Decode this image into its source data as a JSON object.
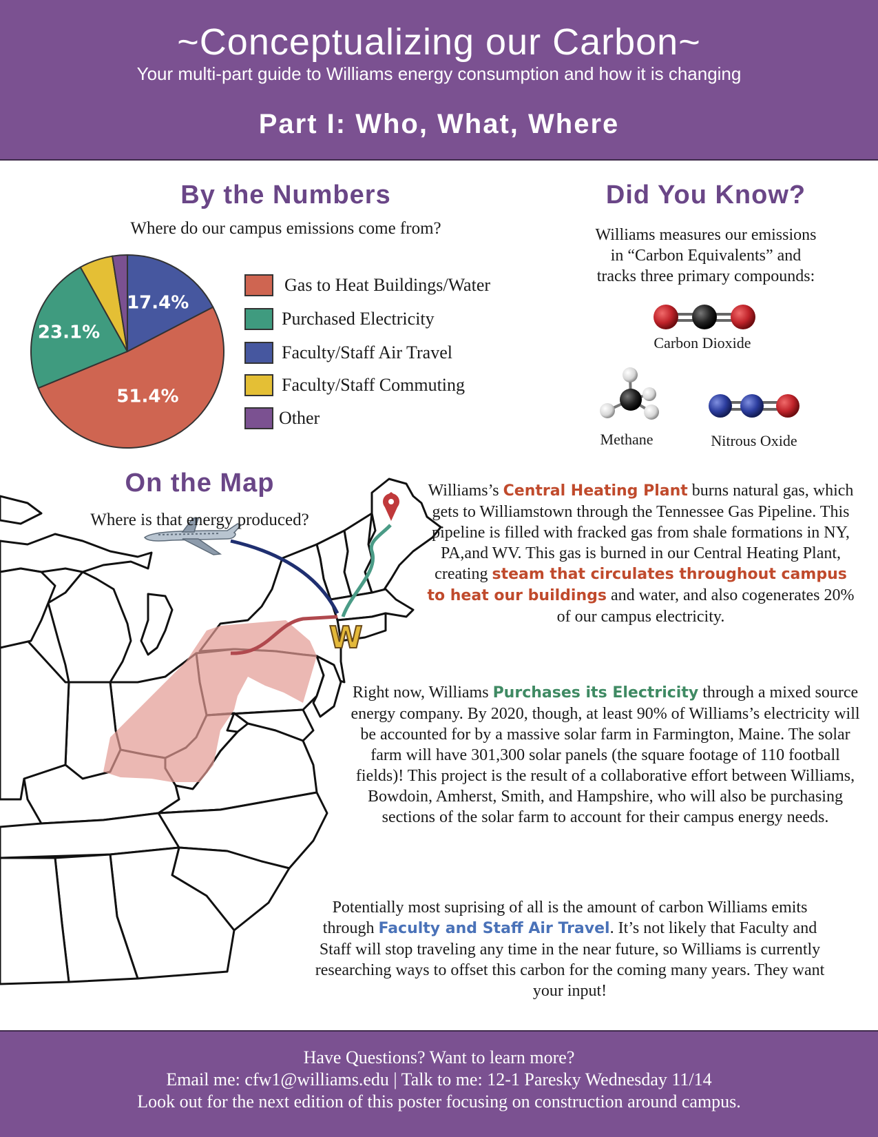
{
  "header": {
    "title": "~Conceptualizing our Carbon~",
    "subtitle": "Your multi-part guide to Williams energy consumption and how it is changing",
    "part": "Part I: Who, What, Where"
  },
  "numbers": {
    "title": "By the Numbers",
    "question": "Where do our campus emissions come from?"
  },
  "chart_data": {
    "type": "pie",
    "categories": [
      "Gas to Heat Buildings/Water",
      "Purchased Electricity",
      "Faculty/Staff Air Travel",
      "Faculty/Staff Commuting",
      "Other"
    ],
    "values": [
      51.4,
      23.1,
      17.4,
      5.6,
      2.5
    ],
    "labels": [
      "51.4%",
      "23.1%",
      "17.4%",
      "",
      ""
    ],
    "colors": [
      "#cf6551",
      "#3f9b7f",
      "#46579f",
      "#e4bf35",
      "#7b5191"
    ],
    "legend_position": "right"
  },
  "did_you_know": {
    "title": "Did You Know?",
    "text_line1": "Williams measures our emissions",
    "text_line2": "in “Carbon Equivalents” and",
    "text_line3": "tracks three primary compounds:",
    "co2": "Carbon Dioxide",
    "methane": "Methane",
    "n2o": "Nitrous Oxide"
  },
  "map": {
    "title": "On the Map",
    "question": "Where is that energy produced?",
    "pin_color": "#c0393b",
    "marker": "W"
  },
  "para1": {
    "a": "Williams’s ",
    "hl1": "Central Heating Plant",
    "b": " burns natural gas, which gets to Williamstown through the Tennessee Gas Pipeline. This pipeline is filled with fracked gas from shale formations in NY, PA,and WV. This gas is burned in our Central Heating Plant, creating ",
    "hl2": "steam that circulates throughout campus to heat our buildings",
    "c": " and water, and also cogenerates 20% of our campus electricity."
  },
  "para2": {
    "a": "Right now, Williams ",
    "hl": "Purchases its Electricity",
    "b": " through a mixed source energy company. By 2020, though, at least 90% of Williams’s electricity will be accounted for by a massive solar farm in Farmington, Maine. The solar farm will have 301,300 solar panels (the square footage of 110 football fields)! This project is the result of a collaborative effort between Williams, Bowdoin, Amherst, Smith, and Hampshire, who will also be purchasing sections of the solar farm to account for their campus energy needs."
  },
  "para3": {
    "a": "Potentially most suprising of all is the amount of carbon Williams emits through ",
    "hl": "Faculty and Staff Air Travel",
    "b": ". It’s not likely that Faculty and Staff will stop traveling any time in the near future, so Williams is currently researching ways to offset this carbon for the coming many years. They want your input!"
  },
  "footer": {
    "line1": "Have Questions? Want to learn more?",
    "line2": "Email me: cfw1@williams.edu | Talk to me: 12-1 Paresky Wednesday 11/14",
    "line3": "Look out for the next edition of this poster focusing on construction around campus."
  }
}
